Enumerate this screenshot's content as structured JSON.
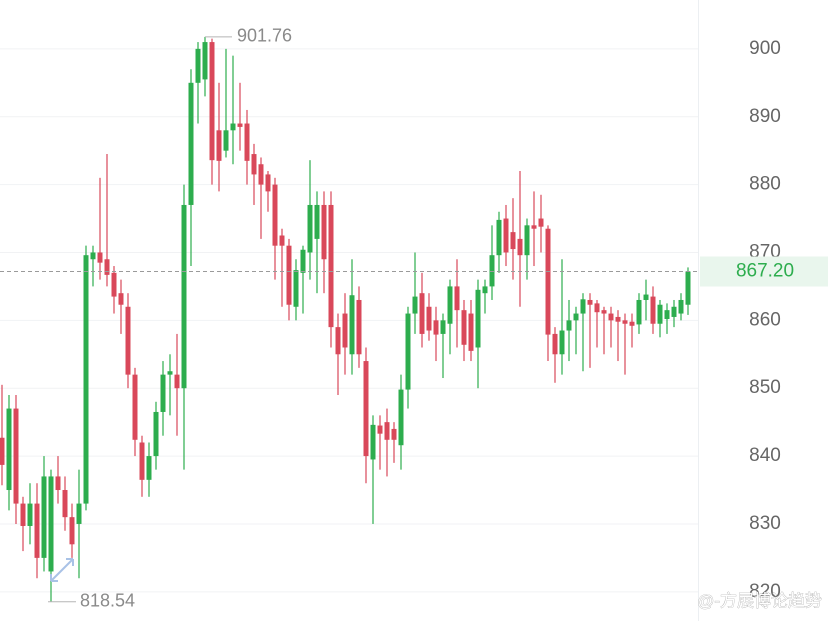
{
  "chart_data": {
    "type": "candlestick",
    "up_color": "#2dad4e",
    "down_color": "#d9485a",
    "grid": true,
    "ylim": [
      815.7,
      907.2
    ],
    "yticks": [
      820,
      830,
      840,
      850,
      860,
      870,
      880,
      890,
      900
    ],
    "open": [
      842.7,
      835,
      847,
      833,
      829.7,
      833,
      825,
      823,
      837,
      835,
      831,
      830,
      833,
      869,
      870,
      869,
      867,
      864,
      862,
      852,
      842,
      836.5,
      840,
      846.5,
      852,
      852,
      850,
      877,
      895,
      895.5,
      901,
      888,
      885,
      888,
      889,
      889,
      884.5,
      883,
      881.5,
      880,
      872.5,
      871,
      862,
      867,
      870,
      872,
      877,
      877,
      859,
      861,
      855,
      863,
      854,
      839.5,
      844.5,
      845,
      844,
      841.6,
      849.8,
      861,
      864,
      862,
      860,
      858,
      859.5,
      865,
      861.5,
      861,
      856,
      864,
      865,
      869.6,
      875,
      873,
      872,
      869.6,
      874,
      875,
      873.5,
      858,
      855,
      858.5,
      860,
      861,
      863,
      862.5,
      861.5,
      861,
      860.5,
      860,
      859.8,
      859.4,
      863,
      863.5,
      859.5,
      860.2,
      860.5,
      861,
      862.3
    ],
    "high": [
      850.5,
      849,
      849,
      834,
      836,
      836,
      840,
      838,
      840,
      837,
      833,
      838,
      871,
      871,
      881,
      884.5,
      868,
      866,
      864,
      853,
      843,
      842,
      848,
      854,
      855,
      858,
      880,
      897,
      901,
      901.76,
      901.5,
      895,
      900,
      899,
      895,
      891,
      886,
      884,
      882,
      881,
      873.5,
      872,
      869,
      871,
      883.6,
      879,
      879,
      879,
      861,
      864,
      869,
      865,
      856,
      846,
      846,
      847,
      845,
      852,
      862,
      870,
      867,
      864,
      862,
      861,
      866,
      869,
      863,
      863,
      866,
      866,
      874,
      876,
      877,
      878,
      882,
      875,
      879,
      878.5,
      874,
      859,
      869,
      863,
      862,
      864,
      864,
      863,
      862,
      862,
      861.5,
      861,
      861,
      864,
      866,
      865,
      863,
      862.5,
      863,
      864,
      867.8
    ],
    "low": [
      835.7,
      832,
      830,
      826,
      827,
      822,
      823,
      818.54,
      833,
      829,
      825,
      822,
      832,
      865,
      866,
      865,
      861,
      858,
      850,
      840,
      834,
      834,
      838,
      843,
      846,
      843,
      838,
      868,
      889,
      893,
      880,
      879,
      884,
      883,
      885,
      880,
      877,
      872,
      876,
      866,
      862,
      860,
      860,
      861,
      866,
      864,
      864,
      856,
      849,
      852,
      852,
      853,
      836,
      830,
      838,
      837,
      839,
      838,
      847,
      858,
      856,
      857,
      854,
      851.5,
      855,
      856,
      854,
      854,
      850,
      861,
      863,
      867,
      868,
      866,
      862,
      866,
      868,
      870,
      854,
      850.8,
      852,
      854,
      855,
      852.5,
      853,
      856,
      855,
      856,
      854,
      852,
      856,
      858,
      860,
      858,
      857.5,
      858,
      859,
      860,
      860.8
    ],
    "close": [
      838.7,
      847,
      833,
      829.7,
      833,
      825,
      837,
      837,
      835,
      831,
      827,
      833,
      869.6,
      870,
      868.5,
      866.7,
      863.5,
      862.3,
      852,
      842.4,
      836.5,
      840,
      846.5,
      852,
      852.5,
      850,
      877,
      895,
      900,
      901,
      883.6,
      883.5,
      888,
      889,
      888.5,
      883.5,
      881.5,
      880,
      879,
      871,
      871,
      862.3,
      867.4,
      870.4,
      877,
      877,
      869,
      859,
      855,
      856,
      863.7,
      855,
      840,
      844.6,
      843.3,
      842.4,
      842.4,
      849.8,
      861,
      863.5,
      858,
      858.5,
      857.9,
      860,
      865,
      861.5,
      856.4,
      855.5,
      864.5,
      865,
      869.6,
      874.8,
      870,
      870.5,
      869.6,
      874,
      873.5,
      873.8,
      857.9,
      855,
      858.5,
      860,
      861,
      863.1,
      862.3,
      861.2,
      861,
      860,
      859.8,
      859.5,
      859.2,
      863,
      863.8,
      859.5,
      862.3,
      861.5,
      862,
      863,
      867.2
    ],
    "max_label": 901.76,
    "min_label": 818.54,
    "current_price": {
      "value": 867.2,
      "label": "867.20"
    },
    "watermark": "@-方展博论趋势"
  }
}
